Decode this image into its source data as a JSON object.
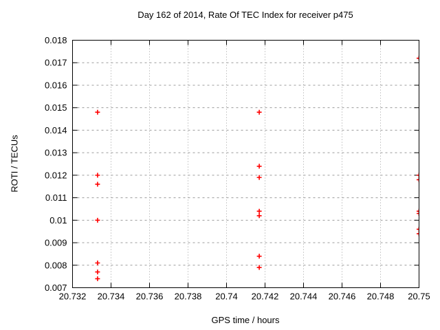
{
  "chart_data": {
    "type": "scatter",
    "title": "Day 162 of 2014, Rate Of TEC Index for receiver p475",
    "xlabel": "GPS time / hours",
    "ylabel": "ROTI / TECUs",
    "xlim": [
      20.732,
      20.75
    ],
    "ylim": [
      0.007,
      0.018
    ],
    "xticks": [
      20.732,
      20.734,
      20.736,
      20.738,
      20.74,
      20.742,
      20.744,
      20.746,
      20.748,
      20.75
    ],
    "xtick_labels": [
      "20.732",
      "20.734",
      "20.736",
      "20.738",
      "20.74",
      "20.742",
      "20.744",
      "20.746",
      "20.748",
      "20.75"
    ],
    "yticks": [
      0.007,
      0.008,
      0.009,
      0.01,
      0.011,
      0.012,
      0.013,
      0.014,
      0.015,
      0.016,
      0.017,
      0.018
    ],
    "ytick_labels": [
      "0.007",
      "0.008",
      "0.009",
      "0.01",
      "0.011",
      "0.012",
      "0.013",
      "0.014",
      "0.015",
      "0.016",
      "0.017",
      "0.018"
    ],
    "grid": true,
    "legend": "none",
    "marker": {
      "shape": "plus",
      "color": "#ff0000",
      "size": 7
    },
    "colors": {
      "background": "#ffffff",
      "border": "#000000",
      "grid": "#9b9b9b",
      "text": "#000000",
      "marker": "#ff0000"
    },
    "series": [
      {
        "name": "ROTI",
        "points": [
          [
            20.7333,
            0.0148
          ],
          [
            20.7333,
            0.012
          ],
          [
            20.7333,
            0.0116
          ],
          [
            20.7333,
            0.01
          ],
          [
            20.7333,
            0.0081
          ],
          [
            20.7333,
            0.0077
          ],
          [
            20.7333,
            0.0074
          ],
          [
            20.7417,
            0.0148
          ],
          [
            20.7417,
            0.0124
          ],
          [
            20.7417,
            0.0119
          ],
          [
            20.7417,
            0.0104
          ],
          [
            20.7417,
            0.0102
          ],
          [
            20.7417,
            0.0084
          ],
          [
            20.7417,
            0.0079
          ],
          [
            20.75,
            0.0172
          ],
          [
            20.75,
            0.012
          ],
          [
            20.75,
            0.0118
          ],
          [
            20.75,
            0.0104
          ],
          [
            20.75,
            0.0103
          ],
          [
            20.75,
            0.0096
          ],
          [
            20.75,
            0.0094
          ]
        ]
      }
    ]
  }
}
